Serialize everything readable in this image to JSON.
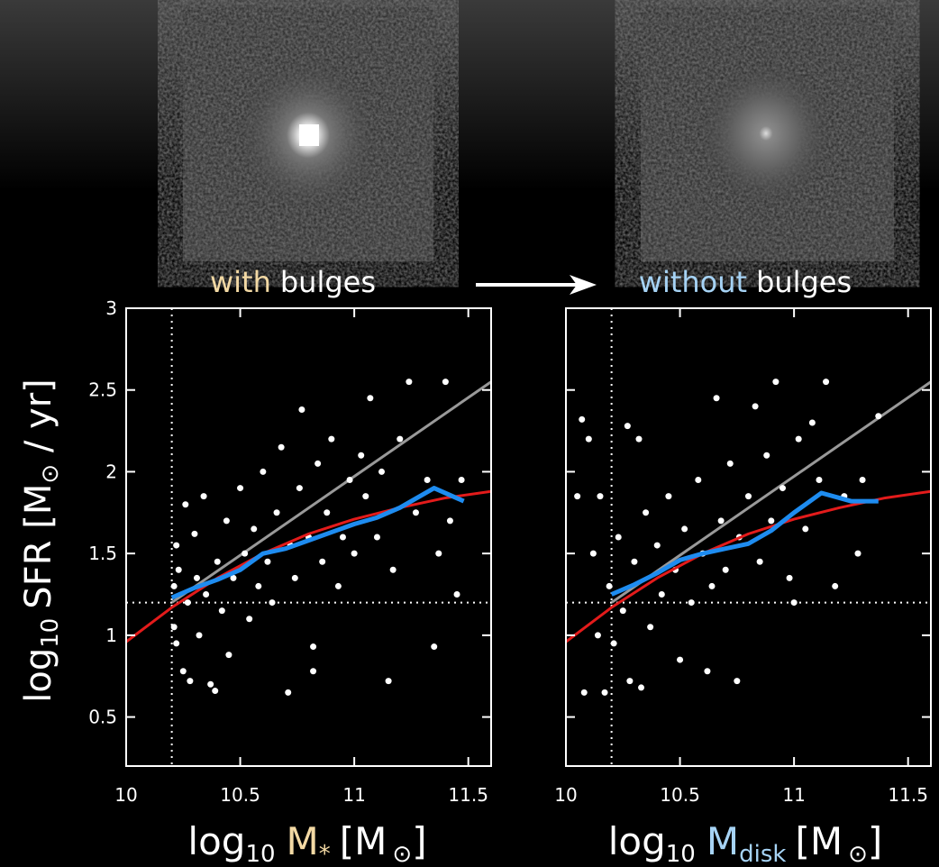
{
  "chart_data": [
    {
      "type": "scatter",
      "header": {
        "highlight": "with",
        "highlight_color": "#f3d9a4",
        "rest": "bulges"
      },
      "xlabel": {
        "base": "log",
        "base_sub": "10",
        "var": "M",
        "var_sub": "*",
        "var_color": "#f3d9a4",
        "unit": "[M",
        "unit_sym": "⊙",
        "close": "]"
      },
      "ylabel": {
        "base": "log",
        "base_sub": "10",
        "main": "SFR [M",
        "unit_sym": "⊙",
        "rest": " / yr]"
      },
      "xlim": [
        10,
        11.6
      ],
      "ylim": [
        0.2,
        3
      ],
      "xticks": [
        10,
        10.5,
        11,
        11.5
      ],
      "yticks": [
        0.5,
        1,
        1.5,
        2,
        2.5,
        3
      ],
      "ytick_labels": true,
      "vline": 10.2,
      "hline": 1.2,
      "points": {
        "color": "#ffffff",
        "x": [
          10.21,
          10.21,
          10.22,
          10.22,
          10.23,
          10.25,
          10.26,
          10.27,
          10.28,
          10.3,
          10.31,
          10.32,
          10.34,
          10.35,
          10.37,
          10.39,
          10.4,
          10.42,
          10.44,
          10.45,
          10.47,
          10.5,
          10.52,
          10.54,
          10.56,
          10.58,
          10.6,
          10.62,
          10.64,
          10.66,
          10.68,
          10.71,
          10.72,
          10.74,
          10.76,
          10.77,
          10.8,
          10.82,
          10.82,
          10.84,
          10.86,
          10.88,
          10.9,
          10.93,
          10.95,
          10.98,
          11.0,
          11.03,
          11.05,
          11.07,
          11.1,
          11.12,
          11.15,
          11.17,
          11.2,
          11.24,
          11.27,
          11.32,
          11.35,
          11.37,
          11.4,
          11.42,
          11.45,
          11.47
        ],
        "y": [
          1.3,
          1.05,
          0.95,
          1.55,
          1.4,
          0.78,
          1.8,
          1.2,
          0.72,
          1.62,
          1.35,
          1.0,
          1.85,
          1.25,
          0.7,
          0.66,
          1.45,
          1.15,
          1.7,
          0.88,
          1.35,
          1.9,
          1.5,
          1.1,
          1.65,
          1.3,
          2.0,
          1.45,
          1.2,
          1.75,
          2.15,
          0.65,
          1.55,
          1.35,
          1.9,
          2.38,
          1.6,
          0.93,
          0.78,
          2.05,
          1.45,
          1.75,
          2.2,
          1.3,
          1.6,
          1.95,
          1.5,
          2.1,
          1.85,
          2.45,
          1.6,
          2.0,
          0.72,
          1.4,
          2.2,
          2.55,
          1.75,
          1.95,
          0.93,
          1.5,
          2.55,
          1.7,
          1.25,
          1.95
        ]
      },
      "lines": [
        {
          "color": "#999999",
          "x": [
            10.2,
            11.6
          ],
          "y": [
            1.2,
            2.55
          ]
        },
        {
          "color": "#e31b1b",
          "x": [
            10,
            10.2,
            10.4,
            10.6,
            10.8,
            11,
            11.2,
            11.4,
            11.6
          ],
          "y": [
            0.96,
            1.17,
            1.35,
            1.5,
            1.62,
            1.71,
            1.78,
            1.84,
            1.88
          ]
        },
        {
          "color": "#1e8cf0",
          "x": [
            10.2,
            10.3,
            10.4,
            10.5,
            10.6,
            10.7,
            10.8,
            10.9,
            11,
            11.1,
            11.2,
            11.35,
            11.48
          ],
          "y": [
            1.23,
            1.29,
            1.34,
            1.4,
            1.5,
            1.53,
            1.58,
            1.63,
            1.68,
            1.72,
            1.78,
            1.9,
            1.82
          ]
        }
      ]
    },
    {
      "type": "scatter",
      "header": {
        "highlight": "without",
        "highlight_color": "#a6d3f5",
        "rest": "bulges"
      },
      "xlabel": {
        "base": "log",
        "base_sub": "10",
        "var": "M",
        "var_sub": "disk",
        "var_color": "#a6d3f5",
        "unit": "[M",
        "unit_sym": "⊙",
        "close": "]"
      },
      "xlim": [
        10,
        11.6
      ],
      "ylim": [
        0.2,
        3
      ],
      "xticks": [
        10,
        10.5,
        11,
        11.5
      ],
      "yticks": [
        0.5,
        1,
        1.5,
        2,
        2.5,
        3
      ],
      "ytick_labels": false,
      "vline": 10.2,
      "hline": 1.2,
      "points": {
        "color": "#ffffff",
        "x": [
          10.05,
          10.07,
          10.08,
          10.1,
          10.12,
          10.14,
          10.15,
          10.17,
          10.19,
          10.21,
          10.23,
          10.25,
          10.27,
          10.28,
          10.3,
          10.32,
          10.33,
          10.35,
          10.37,
          10.4,
          10.42,
          10.45,
          10.48,
          10.5,
          10.52,
          10.55,
          10.58,
          10.6,
          10.62,
          10.64,
          10.66,
          10.68,
          10.7,
          10.72,
          10.75,
          10.76,
          10.8,
          10.83,
          10.85,
          10.88,
          10.9,
          10.92,
          10.95,
          10.98,
          11.0,
          11.02,
          11.05,
          11.08,
          11.11,
          11.14,
          11.18,
          11.22,
          11.28,
          11.3,
          11.37
        ],
        "y": [
          1.85,
          2.32,
          0.65,
          2.2,
          1.5,
          1.0,
          1.85,
          0.65,
          1.3,
          0.95,
          1.6,
          1.15,
          2.28,
          0.72,
          1.45,
          2.2,
          0.68,
          1.75,
          1.05,
          1.55,
          1.25,
          1.85,
          1.4,
          0.85,
          1.65,
          1.2,
          1.95,
          1.5,
          0.78,
          1.3,
          2.45,
          1.7,
          1.4,
          2.05,
          0.72,
          1.6,
          1.85,
          2.4,
          1.45,
          2.1,
          1.7,
          2.55,
          1.9,
          1.35,
          1.2,
          2.2,
          1.65,
          2.3,
          1.95,
          2.55,
          1.3,
          1.85,
          1.5,
          1.95,
          2.34
        ]
      },
      "lines": [
        {
          "color": "#999999",
          "x": [
            10.2,
            11.6
          ],
          "y": [
            1.2,
            2.55
          ]
        },
        {
          "color": "#e31b1b",
          "x": [
            10,
            10.2,
            10.4,
            10.6,
            10.8,
            11,
            11.2,
            11.4,
            11.6
          ],
          "y": [
            0.96,
            1.17,
            1.35,
            1.5,
            1.62,
            1.71,
            1.78,
            1.84,
            1.88
          ]
        },
        {
          "color": "#1e8cf0",
          "x": [
            10.2,
            10.3,
            10.4,
            10.5,
            10.6,
            10.7,
            10.8,
            10.9,
            11,
            11.12,
            11.25,
            11.37
          ],
          "y": [
            1.25,
            1.31,
            1.38,
            1.46,
            1.5,
            1.53,
            1.56,
            1.64,
            1.75,
            1.87,
            1.82,
            1.82
          ]
        }
      ]
    }
  ]
}
